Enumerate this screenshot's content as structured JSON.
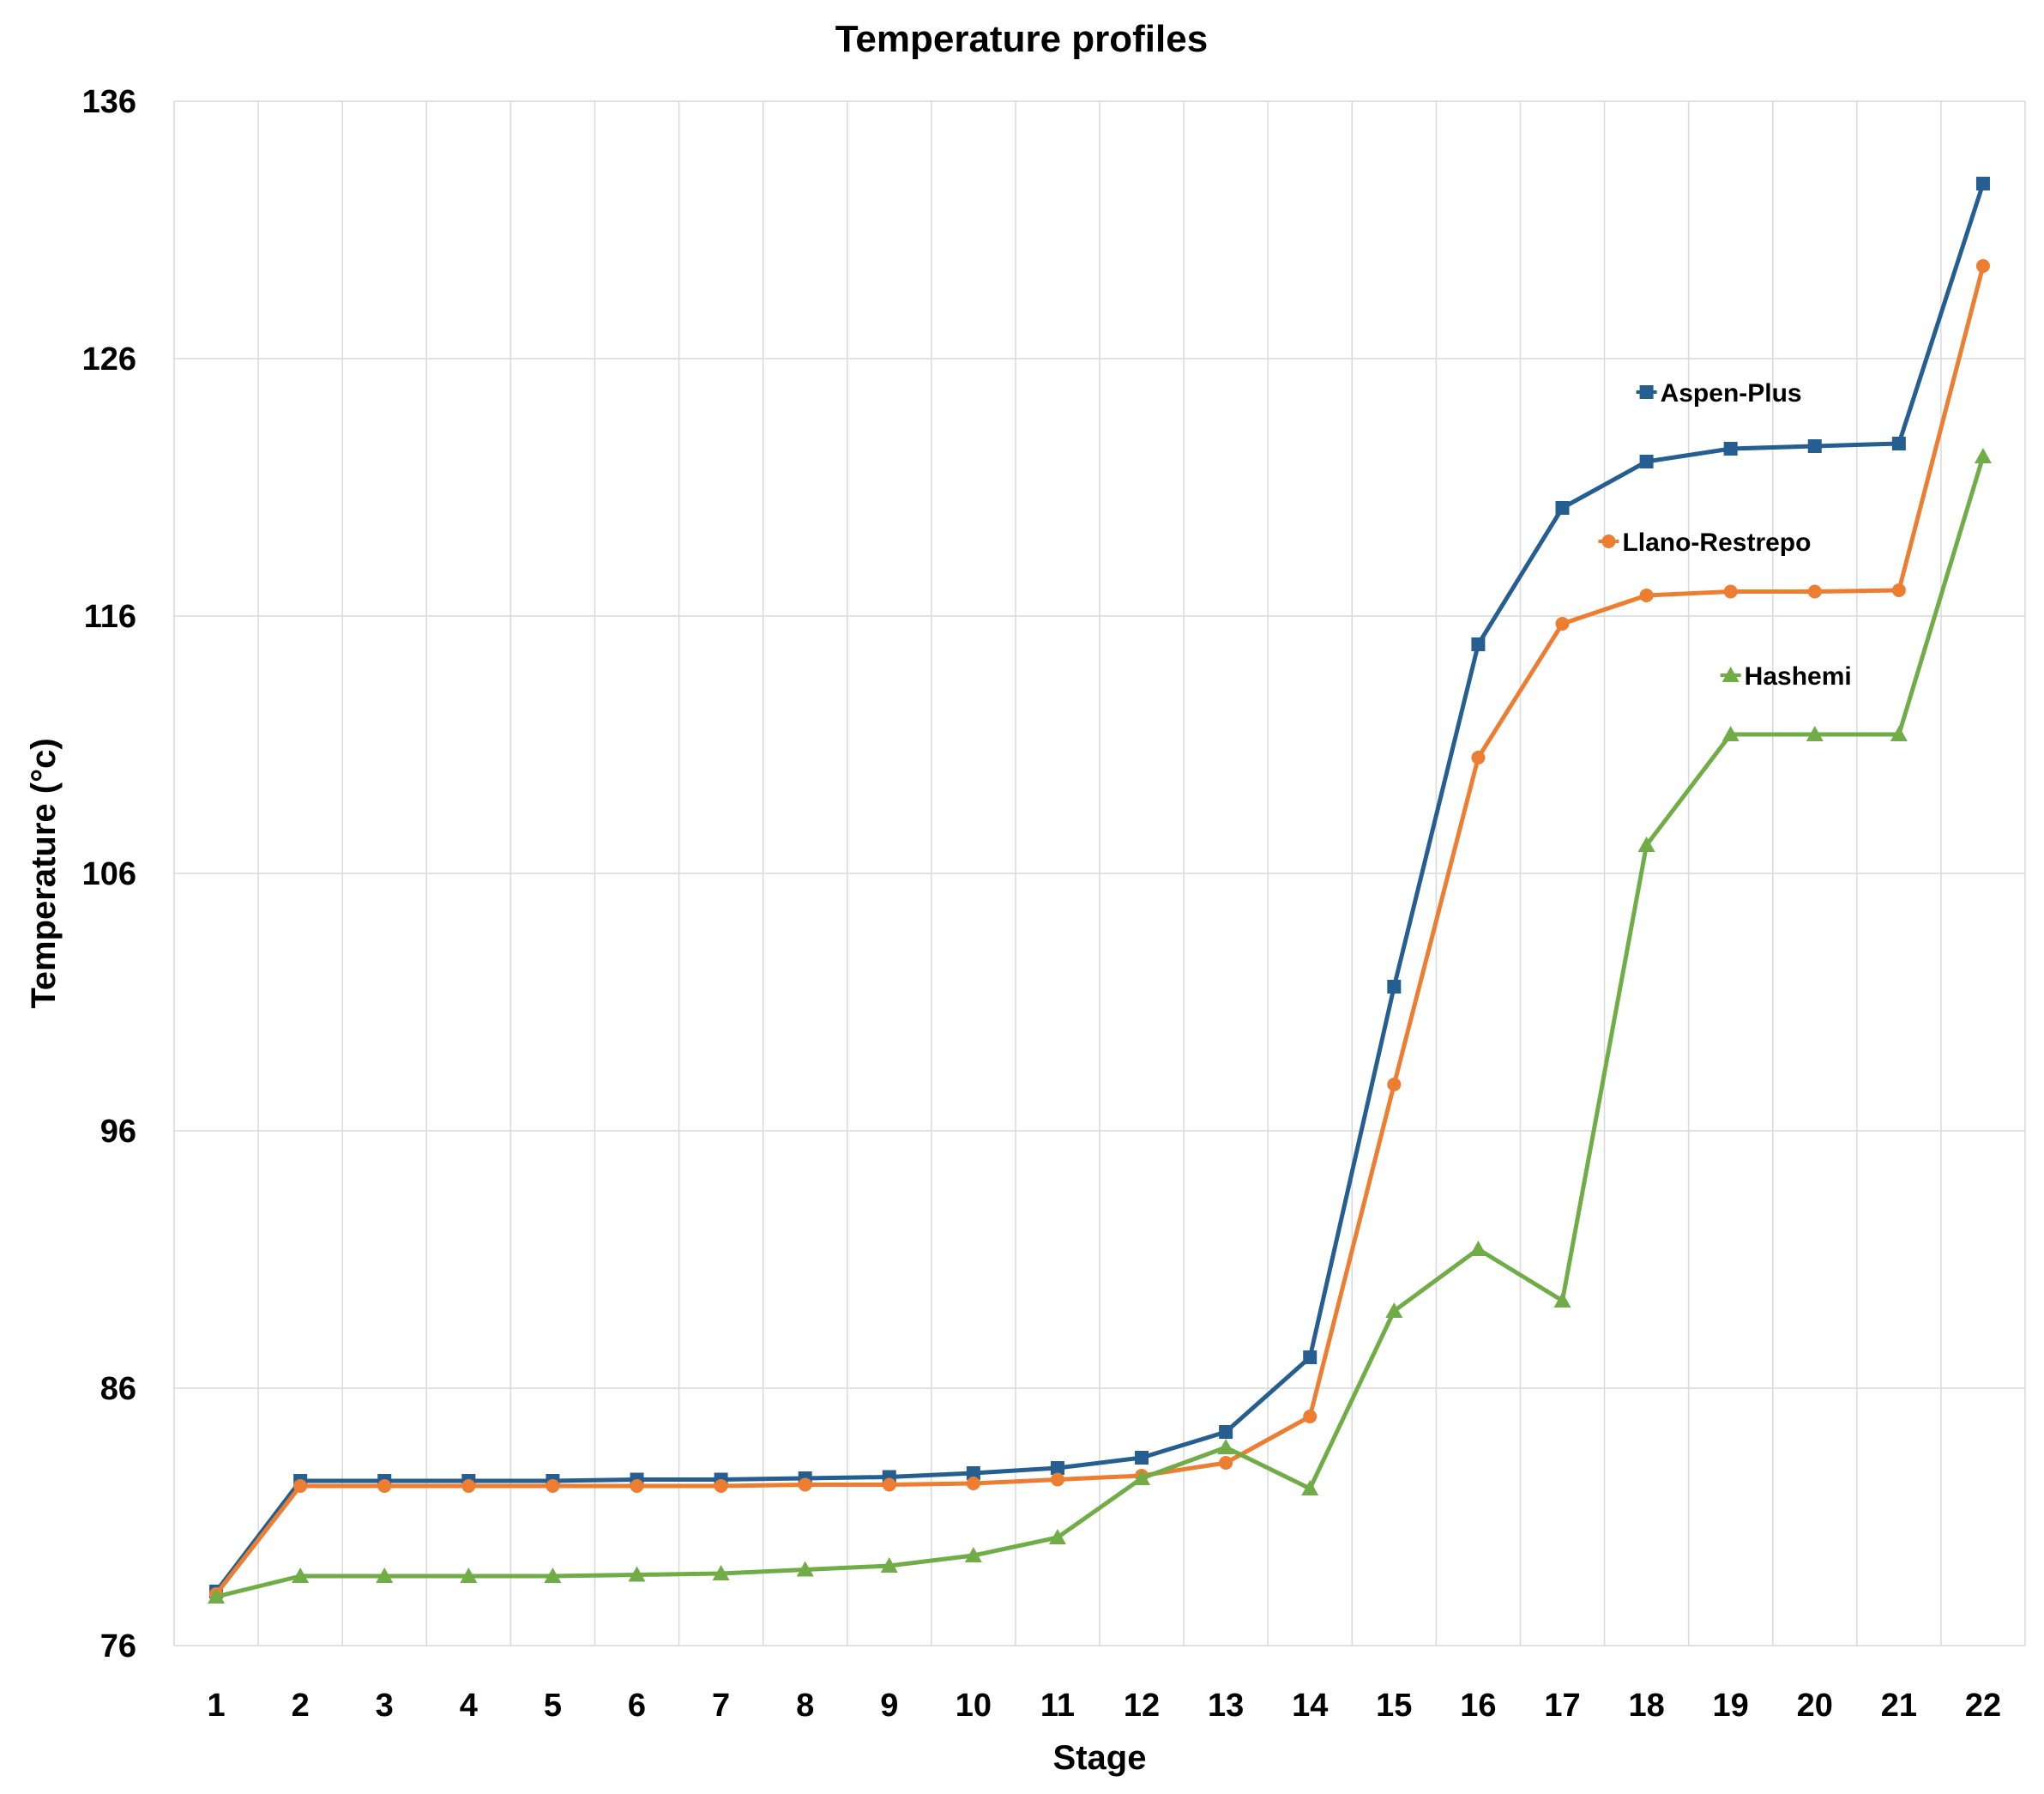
{
  "chart_data": {
    "type": "line",
    "title": "Temperature profiles",
    "xlabel": "Stage",
    "ylabel": "Temperature (°c)",
    "categories": [
      "1",
      "2",
      "3",
      "4",
      "5",
      "6",
      "7",
      "8",
      "9",
      "10",
      "11",
      "12",
      "13",
      "14",
      "15",
      "16",
      "17",
      "18",
      "19",
      "20",
      "21",
      "22"
    ],
    "ylim": [
      76,
      136
    ],
    "yticks": [
      76,
      86,
      96,
      106,
      116,
      126,
      136
    ],
    "grid": true,
    "series": [
      {
        "name": "Aspen-Plus",
        "color": "#255e91",
        "marker": "square",
        "values": [
          78.1,
          82.4,
          82.4,
          82.4,
          82.4,
          82.45,
          82.45,
          82.5,
          82.55,
          82.7,
          82.9,
          83.3,
          84.3,
          87.2,
          101.6,
          114.9,
          120.2,
          122.0,
          122.5,
          122.6,
          122.7,
          132.8
        ]
      },
      {
        "name": "Llano-Restrepo",
        "color": "#ed7d31",
        "marker": "circle",
        "values": [
          78.0,
          82.2,
          82.2,
          82.2,
          82.2,
          82.2,
          82.2,
          82.25,
          82.25,
          82.3,
          82.45,
          82.6,
          83.1,
          84.9,
          97.8,
          110.5,
          115.7,
          116.8,
          116.95,
          116.95,
          117.0,
          129.6
        ]
      },
      {
        "name": "Hashemi",
        "color": "#70ad47",
        "marker": "triangle",
        "values": [
          77.9,
          78.7,
          78.7,
          78.7,
          78.7,
          78.75,
          78.8,
          78.95,
          79.1,
          79.5,
          80.2,
          82.5,
          83.7,
          82.1,
          89.0,
          91.4,
          89.4,
          107.1,
          111.4,
          111.4,
          111.4,
          122.2
        ]
      }
    ]
  }
}
